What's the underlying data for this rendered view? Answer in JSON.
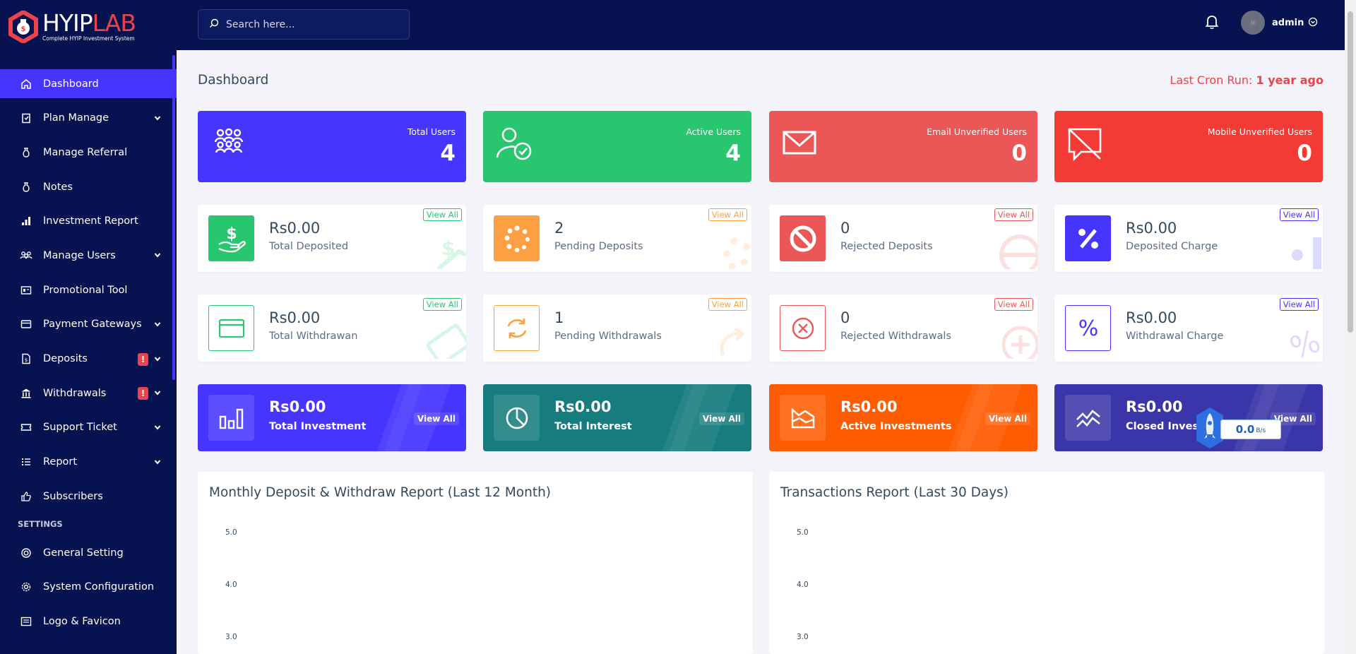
{
  "brand": {
    "name_a": "HYIP",
    "name_b": "LAB",
    "tagline": "Complete HYIP Investment System"
  },
  "search": {
    "placeholder": "Search here..."
  },
  "user": {
    "name": "admin"
  },
  "sidebar": {
    "items": [
      {
        "label": "Dashboard",
        "icon": "home-icon"
      },
      {
        "label": "Plan Manage",
        "icon": "clipboard-icon"
      },
      {
        "label": "Manage Referral",
        "icon": "money-bag-icon"
      },
      {
        "label": "Notes",
        "icon": "money-bag-icon"
      },
      {
        "label": "Investment Report",
        "icon": "bar-chart-icon"
      },
      {
        "label": "Manage Users",
        "icon": "users-icon"
      },
      {
        "label": "Promotional Tool",
        "icon": "id-card-icon"
      },
      {
        "label": "Payment Gateways",
        "icon": "credit-card-icon"
      },
      {
        "label": "Deposits",
        "icon": "file-dollar-icon"
      },
      {
        "label": "Withdrawals",
        "icon": "bank-icon"
      },
      {
        "label": "Support Ticket",
        "icon": "ticket-icon"
      },
      {
        "label": "Report",
        "icon": "list-icon"
      },
      {
        "label": "Subscribers",
        "icon": "thumbs-up-icon"
      }
    ],
    "settings_label": "SETTINGS",
    "settings_items": [
      {
        "label": "General Setting",
        "icon": "life-ring-icon"
      },
      {
        "label": "System Configuration",
        "icon": "gear-icon"
      },
      {
        "label": "Logo & Favicon",
        "icon": "image-icon"
      }
    ]
  },
  "page": {
    "title": "Dashboard",
    "cron_label": "Last Cron Run:",
    "cron_value": "1 year ago"
  },
  "stats_top": [
    {
      "label": "Total Users",
      "value": "4",
      "color": "#4634ff"
    },
    {
      "label": "Active Users",
      "value": "4",
      "color": "#28c76f"
    },
    {
      "label": "Email Unverified Users",
      "value": "0",
      "color": "#eb5757"
    },
    {
      "label": "Mobile Unverified Users",
      "value": "0",
      "color": "#f43a35"
    }
  ],
  "deposit_widgets": [
    {
      "value": "Rs0.00",
      "label": "Total Deposited",
      "view_all": "View All"
    },
    {
      "value": "2",
      "label": "Pending Deposits",
      "view_all": "View All"
    },
    {
      "value": "0",
      "label": "Rejected Deposits",
      "view_all": "View All"
    },
    {
      "value": "Rs0.00",
      "label": "Deposited Charge",
      "view_all": "View All"
    }
  ],
  "withdraw_widgets": [
    {
      "value": "Rs0.00",
      "label": "Total Withdrawan",
      "view_all": "View All"
    },
    {
      "value": "1",
      "label": "Pending Withdrawals",
      "view_all": "View All"
    },
    {
      "value": "0",
      "label": "Rejected Withdrawals",
      "view_all": "View All"
    },
    {
      "value": "Rs0.00",
      "label": "Withdrawal Charge",
      "view_all": "View All"
    }
  ],
  "invest_widgets": [
    {
      "value": "Rs0.00",
      "label": "Total Investment",
      "view_all": "View All"
    },
    {
      "value": "Rs0.00",
      "label": "Total Interest",
      "view_all": "View All"
    },
    {
      "value": "Rs0.00",
      "label": "Active Investments",
      "view_all": "View All"
    },
    {
      "value": "Rs0.00",
      "label": "Closed Investments",
      "view_all": "View All"
    }
  ],
  "speed_overlay": {
    "value": "0.0",
    "unit": "B/s"
  },
  "charts": [
    {
      "title": "Monthly Deposit & Withdraw Report (Last 12 Month)",
      "ticks": [
        "5.0",
        "4.0",
        "3.0"
      ]
    },
    {
      "title": "Transactions Report (Last 30 Days)",
      "ticks": [
        "5.0",
        "4.0",
        "3.0"
      ]
    }
  ]
}
